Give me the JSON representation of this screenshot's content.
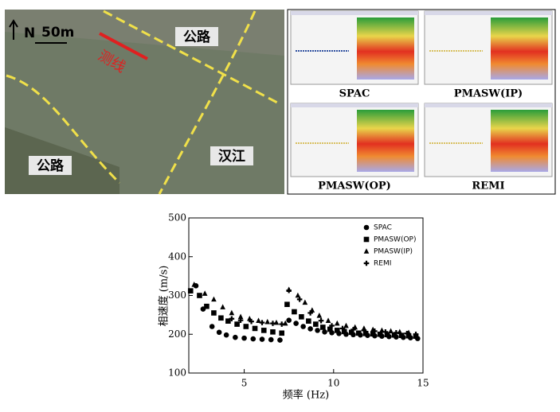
{
  "map_labels": {
    "north": "N",
    "scale": "50m",
    "survey_line": "测线",
    "road_top": "公路",
    "road_left": "公路",
    "river": "汉江"
  },
  "panel_labels": [
    "SPAC",
    "PMASW(IP)",
    "PMASW(OP)",
    "REMI"
  ],
  "chart_data": {
    "type": "scatter",
    "x_label": "频率 (Hz)",
    "y_label": "相速度 (m/s)",
    "xlim": [
      1.9,
      15
    ],
    "xticks": [
      5,
      10,
      15
    ],
    "ylim": [
      100,
      500
    ],
    "yticks": [
      100,
      200,
      300,
      400,
      500
    ],
    "legend": "upper right",
    "series": [
      {
        "name": "SPAC",
        "marker": "circle",
        "color": "#000000",
        "x": [
          2.3,
          2.7,
          3.2,
          3.6,
          4.0,
          4.5,
          5.0,
          5.5,
          6.0,
          6.5,
          7.0,
          7.5,
          7.9,
          8.3,
          8.7,
          9.1,
          9.5,
          9.9,
          10.3,
          10.7,
          11.1,
          11.5,
          11.9,
          12.3,
          12.7,
          13.1,
          13.5,
          13.9,
          14.3,
          14.7
        ],
        "values": [
          325,
          265,
          220,
          205,
          198,
          192,
          190,
          188,
          187,
          186,
          185,
          236,
          228,
          220,
          214,
          210,
          206,
          204,
          202,
          200,
          199,
          198,
          197,
          196,
          195,
          194,
          193,
          192,
          191,
          189
        ]
      },
      {
        "name": "PMASW(OP)",
        "marker": "square",
        "color": "#000000",
        "x": [
          2.0,
          2.5,
          2.9,
          3.3,
          3.7,
          4.1,
          4.6,
          5.1,
          5.6,
          6.1,
          6.6,
          7.1,
          7.4,
          7.8,
          8.2,
          8.6,
          9.0,
          9.4,
          9.8,
          10.2,
          10.6,
          11.0,
          11.4,
          11.8,
          12.2,
          12.6,
          13.0,
          13.4,
          13.8,
          14.2,
          14.6
        ],
        "values": [
          312,
          300,
          272,
          255,
          242,
          234,
          226,
          220,
          215,
          210,
          206,
          203,
          277,
          258,
          245,
          234,
          226,
          218,
          213,
          210,
          207,
          205,
          203,
          202,
          201,
          200,
          199,
          198,
          197,
          196,
          195
        ]
      },
      {
        "name": "PMASW(IP)",
        "marker": "triangle",
        "color": "#000000",
        "x": [
          2.2,
          2.8,
          3.3,
          3.8,
          4.3,
          4.8,
          5.3,
          5.8,
          6.3,
          6.8,
          7.3,
          7.5,
          8.0,
          8.4,
          8.8,
          9.2,
          9.7,
          10.2,
          10.7,
          11.2,
          11.7,
          12.2,
          12.7,
          13.2,
          13.7,
          14.2
        ],
        "values": [
          328,
          305,
          290,
          270,
          255,
          245,
          240,
          235,
          232,
          230,
          228,
          315,
          300,
          282,
          262,
          248,
          235,
          228,
          222,
          218,
          215,
          212,
          210,
          208,
          206,
          204
        ]
      },
      {
        "name": "REMI",
        "marker": "plus",
        "color": "#000000",
        "x": [
          4.3,
          4.8,
          5.4,
          6.0,
          6.6,
          7.1,
          7.5,
          8.1,
          8.7,
          9.3,
          9.9,
          10.5,
          11.1,
          11.7,
          12.3,
          12.9,
          13.5,
          14.1,
          14.6
        ],
        "values": [
          240,
          236,
          233,
          230,
          228,
          226,
          313,
          290,
          255,
          235,
          222,
          215,
          212,
          210,
          208,
          206,
          204,
          202,
          200
        ]
      }
    ]
  }
}
